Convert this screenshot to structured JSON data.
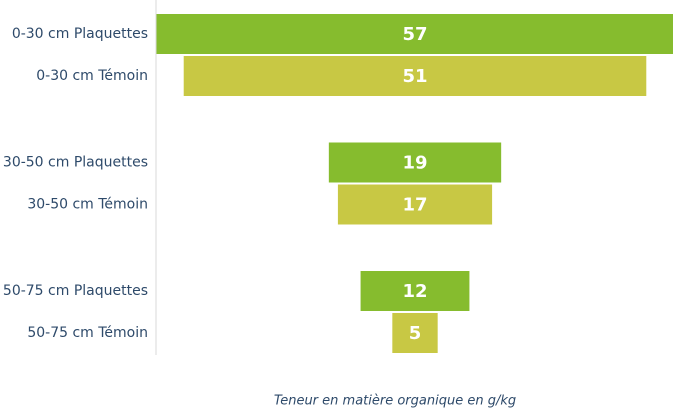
{
  "chart_data": {
    "type": "funnel",
    "categories": [
      "0-30 cm Plaquettes",
      "0-30 cm Témoin",
      "30-50 cm Plaquettes",
      "30-50 cm Témoin",
      "50-75 cm Plaquettes",
      "50-75 cm Témoin"
    ],
    "values": [
      57,
      51,
      19,
      17,
      12,
      5
    ],
    "colors": [
      "#86bc2e",
      "#c8c844",
      "#86bc2e",
      "#c8c844",
      "#86bc2e",
      "#c8c844"
    ],
    "xlabel": "Teneur en matière organique en g/kg"
  }
}
